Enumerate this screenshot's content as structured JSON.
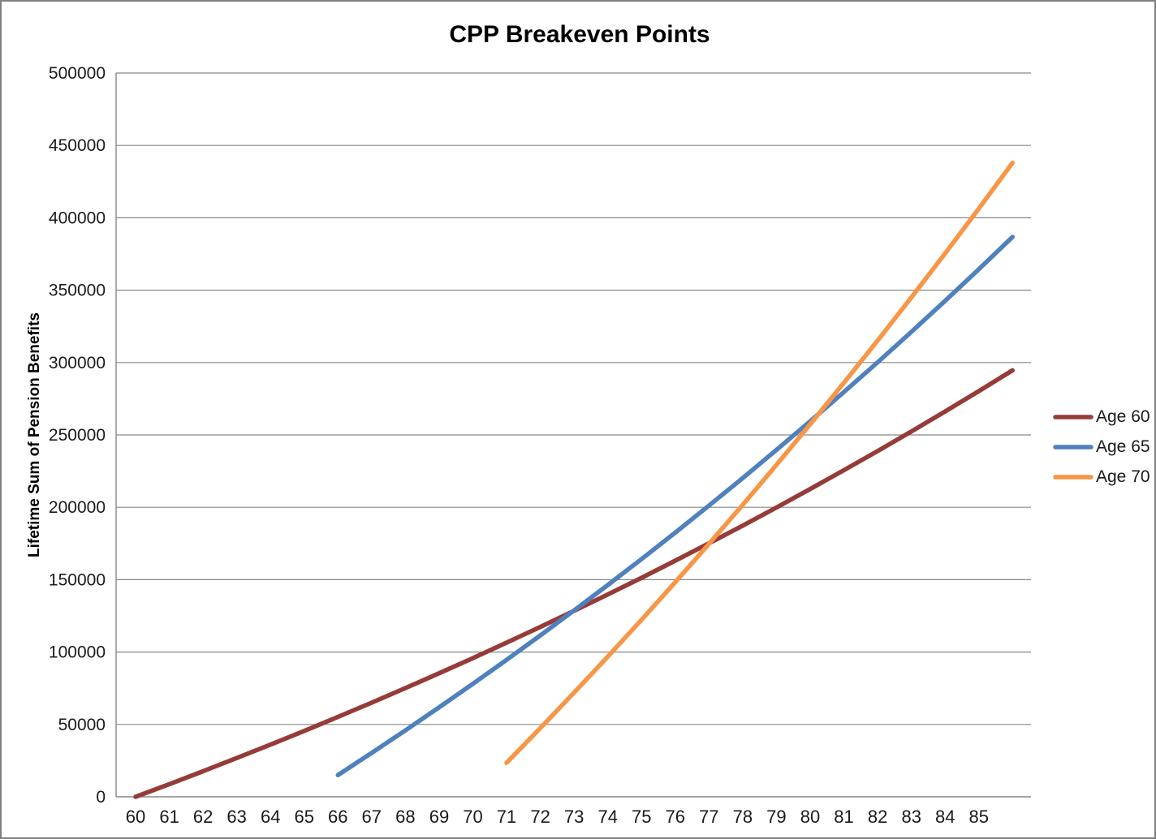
{
  "chart_data": {
    "type": "line",
    "title": "CPP Breakeven Points",
    "xlabel": "",
    "ylabel": "Lifetime Sum of Pension Benefits",
    "ylim": [
      0,
      500000
    ],
    "y_tick_step": 50000,
    "y_ticks": [
      0,
      50000,
      100000,
      150000,
      200000,
      250000,
      300000,
      350000,
      400000,
      450000,
      500000
    ],
    "x_first_category": 60,
    "x_last_data_age": 86,
    "x_tick_labels": [
      "60",
      "61",
      "62",
      "63",
      "64",
      "65",
      "66",
      "67",
      "68",
      "69",
      "70",
      "71",
      "72",
      "73",
      "74",
      "75",
      "76",
      "77",
      "78",
      "79",
      "80",
      "81",
      "82",
      "83",
      "84",
      "85"
    ],
    "grid": "horizontal",
    "gridline_color": "#878787",
    "axis_color": "#878787",
    "legend_position": "right",
    "series": [
      {
        "name": "Age 60",
        "color": "#963C38",
        "start_age": 60,
        "values": [
          0,
          8750,
          17675,
          26779,
          36064,
          45535,
          55196,
          65050,
          75101,
          85353,
          95810,
          106476,
          117356,
          128453,
          139772,
          151317,
          163094,
          175106,
          187358,
          199855,
          212602,
          225604,
          238866,
          252393,
          266191,
          280265,
          294620
        ]
      },
      {
        "name": "Age 65",
        "color": "#4F81BD",
        "start_age": 66,
        "values": [
          15000,
          30300,
          45906,
          61824,
          78061,
          94622,
          111514,
          128745,
          146319,
          164246,
          182531,
          201181,
          220205,
          239609,
          259401,
          279589,
          300181,
          321185,
          342608,
          364461,
          386750
        ]
      },
      {
        "name": "Age 70",
        "color": "#F79646",
        "start_age": 71,
        "values": [
          23500,
          47470,
          71919,
          96858,
          122295,
          148241,
          174706,
          201700,
          229234,
          257318,
          285965,
          315184,
          344988,
          375388,
          406395,
          438023
        ]
      }
    ],
    "breakeven_points_read_from_chart": [
      {
        "lines": "Age 60 vs Age 65",
        "age": 73,
        "value": 128500
      },
      {
        "lines": "Age 60 vs Age 70",
        "age": 77,
        "value": 174000
      },
      {
        "lines": "Age 65 vs Age 70",
        "age": 80,
        "value": 265000
      }
    ]
  }
}
